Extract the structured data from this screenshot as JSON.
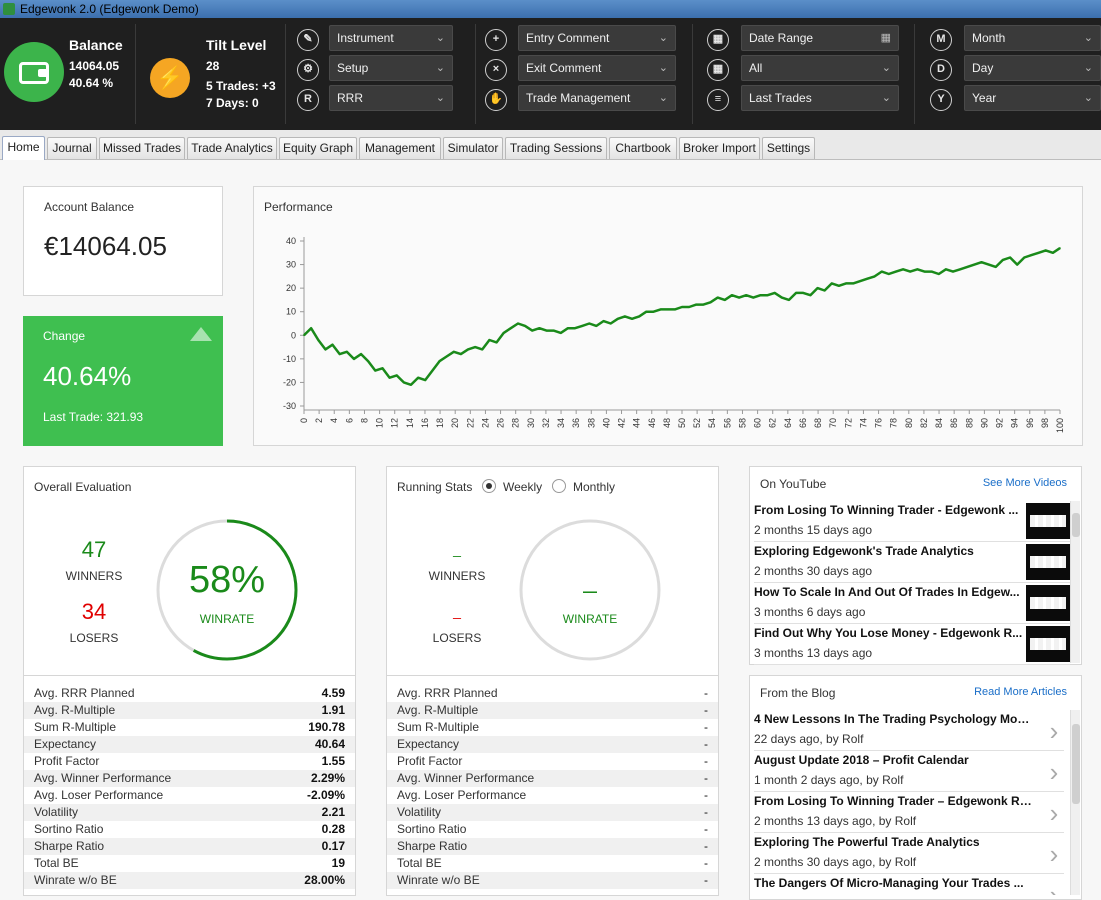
{
  "window": {
    "title": "Edgewonk 2.0 (Edgewonk Demo)"
  },
  "header": {
    "balance": {
      "label": "Balance",
      "value": "14064.05",
      "percent": "40.64 %"
    },
    "tilt": {
      "label": "Tilt Level",
      "value": "28",
      "trades": "5 Trades: +3",
      "days": "7 Days: 0"
    },
    "filters": {
      "col1": [
        {
          "icon": "tag-icon",
          "glyph": "✎",
          "label": "Instrument"
        },
        {
          "icon": "setup-icon",
          "glyph": "⚙",
          "label": "Setup"
        },
        {
          "icon": "rrr-icon",
          "glyph": "R",
          "label": "RRR"
        }
      ],
      "col2": [
        {
          "icon": "entry-comment-icon",
          "glyph": "+",
          "label": "Entry Comment"
        },
        {
          "icon": "exit-comment-icon",
          "glyph": "×",
          "label": "Exit Comment"
        },
        {
          "icon": "hand-icon",
          "glyph": "✋",
          "label": "Trade Management"
        }
      ],
      "col3": [
        {
          "icon": "calendar-icon",
          "glyph": "▦",
          "label": "Date Range",
          "arrow": "▦"
        },
        {
          "icon": "calendar-all-icon",
          "glyph": "▦",
          "label": "All",
          "arrow": "⌄"
        },
        {
          "icon": "sliders-icon",
          "glyph": "≡",
          "label": "Last Trades",
          "arrow": "⌄"
        }
      ],
      "col4": [
        {
          "icon": "month-icon",
          "glyph": "M",
          "label": "Month"
        },
        {
          "icon": "day-icon",
          "glyph": "D",
          "label": "Day"
        },
        {
          "icon": "year-icon",
          "glyph": "Y",
          "label": "Year"
        }
      ]
    }
  },
  "tabs": [
    "Home",
    "Journal",
    "Missed Trades",
    "Trade Analytics",
    "Equity Graph",
    "Management",
    "Simulator",
    "Trading Sessions",
    "Chartbook",
    "Broker Import",
    "Settings"
  ],
  "account": {
    "label": "Account Balance",
    "value": "€14064.05"
  },
  "change": {
    "label": "Change",
    "value": "40.64%",
    "last_trade": "Last Trade: 321.93",
    "color": "#3fbf50"
  },
  "performance": {
    "title": "Performance"
  },
  "chart_data": {
    "type": "line",
    "title": "Performance",
    "xlabel": "",
    "ylabel": "",
    "ylim": [
      -30,
      40
    ],
    "yticks": [
      40,
      30,
      20,
      10,
      0,
      -10,
      -20,
      -30
    ],
    "xlim": [
      0,
      100
    ],
    "xticks": [
      0,
      2,
      4,
      6,
      8,
      10,
      12,
      14,
      16,
      18,
      20,
      22,
      24,
      26,
      28,
      30,
      32,
      34,
      36,
      38,
      40,
      42,
      44,
      46,
      48,
      50,
      52,
      54,
      56,
      58,
      60,
      62,
      64,
      66,
      68,
      70,
      72,
      74,
      76,
      78,
      80,
      82,
      84,
      86,
      88,
      90,
      92,
      94,
      96,
      98,
      100
    ],
    "series": [
      {
        "color": "#1a8a1a",
        "values": [
          0,
          3,
          -2,
          -6,
          -4,
          -8,
          -7,
          -10,
          -8,
          -11,
          -15,
          -14,
          -18,
          -17,
          -20,
          -21,
          -18,
          -19,
          -15,
          -11,
          -9,
          -7,
          -8,
          -6,
          -5,
          -6,
          -2,
          -3,
          1,
          3,
          5,
          4,
          2,
          3,
          2,
          2,
          1,
          3,
          3,
          4,
          5,
          4,
          6,
          5,
          7,
          8,
          7,
          8,
          10,
          10,
          11,
          11,
          11,
          12,
          12,
          13,
          13,
          14,
          16,
          15,
          17,
          16,
          17,
          16,
          17,
          17,
          18,
          16,
          15,
          18,
          18,
          17,
          20,
          19,
          22,
          21,
          22,
          22,
          23,
          24,
          25,
          27,
          26,
          27,
          28,
          27,
          28,
          27,
          27,
          26,
          28,
          27,
          28,
          29,
          30,
          31,
          30,
          29,
          32,
          33,
          30,
          33,
          34,
          35,
          36,
          35,
          37
        ]
      }
    ]
  },
  "evaluation": {
    "title": "Overall Evaluation",
    "winners_count": "47",
    "winners_label": "WINNERS",
    "losers_count": "34",
    "losers_label": "LOSERS",
    "winrate": "58%",
    "winrate_label": "WINRATE",
    "winrate_fraction": 0.58,
    "win_color": "#1a8a1a",
    "loss_color": "#e00000",
    "stats": [
      {
        "label": "Avg. RRR Planned",
        "value": "4.59"
      },
      {
        "label": "Avg. R-Multiple",
        "value": "1.91"
      },
      {
        "label": "Sum R-Multiple",
        "value": "190.78"
      },
      {
        "label": "Expectancy",
        "value": "40.64"
      },
      {
        "label": "Profit Factor",
        "value": "1.55"
      },
      {
        "label": "Avg. Winner Performance",
        "value": "2.29%"
      },
      {
        "label": "Avg. Loser Performance",
        "value": "-2.09%"
      },
      {
        "label": "Volatility",
        "value": "2.21"
      },
      {
        "label": "Sortino Ratio",
        "value": "0.28"
      },
      {
        "label": "Sharpe Ratio",
        "value": "0.17"
      },
      {
        "label": "Total BE",
        "value": "19"
      },
      {
        "label": "Winrate w/o BE",
        "value": "28.00%"
      }
    ]
  },
  "running": {
    "title": "Running Stats",
    "weekly": "Weekly",
    "monthly": "Monthly",
    "winners_count": "_",
    "winners_label": "WINNERS",
    "losers_count": "_",
    "losers_label": "LOSERS",
    "winrate": "_",
    "winrate_label": "WINRATE",
    "stats": [
      {
        "label": "Avg. RRR Planned",
        "value": "-"
      },
      {
        "label": "Avg. R-Multiple",
        "value": "-"
      },
      {
        "label": "Sum R-Multiple",
        "value": "-"
      },
      {
        "label": "Expectancy",
        "value": "-"
      },
      {
        "label": "Profit Factor",
        "value": "-"
      },
      {
        "label": "Avg. Winner Performance",
        "value": "-"
      },
      {
        "label": "Avg. Loser Performance",
        "value": "-"
      },
      {
        "label": "Volatility",
        "value": "-"
      },
      {
        "label": "Sortino Ratio",
        "value": "-"
      },
      {
        "label": "Sharpe Ratio",
        "value": "-"
      },
      {
        "label": "Total BE",
        "value": "-"
      },
      {
        "label": "Winrate w/o BE",
        "value": "-"
      }
    ]
  },
  "youtube": {
    "title": "On YouTube",
    "link": "See More Videos",
    "items": [
      {
        "title": "From Losing To Winning Trader - Edgewonk ...",
        "time": "2 months 15 days ago"
      },
      {
        "title": "Exploring Edgewonk's Trade Analytics",
        "time": "2 months 30 days ago"
      },
      {
        "title": "How To Scale In And Out Of Trades In Edgew...",
        "time": "3 months 6 days ago"
      },
      {
        "title": "Find Out Why You Lose Money - Edgewonk R...",
        "time": "3 months 13 days ago"
      }
    ]
  },
  "blog": {
    "title": "From the Blog",
    "link": "Read More Articles",
    "items": [
      {
        "title": "4 New Lessons In The Trading Psychology Mod...",
        "time": "22 days ago, by Rolf"
      },
      {
        "title": "August Update 2018 – Profit Calendar",
        "time": "1 month 2 days ago, by Rolf"
      },
      {
        "title": "From Losing To Winning Trader – Edgewonk Re...",
        "time": "2 months 13 days ago, by Rolf"
      },
      {
        "title": "Exploring The Powerful Trade Analytics",
        "time": "2 months 30 days ago, by Rolf"
      },
      {
        "title": "The Dangers Of Micro-Managing Your Trades ...",
        "time": ""
      }
    ]
  }
}
